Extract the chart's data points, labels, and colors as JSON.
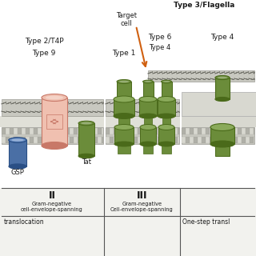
{
  "bg_color": "#f2f2ee",
  "pink_color": "#e8a898",
  "pink_dark": "#c87868",
  "pink_light": "#f0c0b0",
  "blue_color": "#4a6fa5",
  "blue_dark": "#2a4f85",
  "blue_light": "#6a8fc5",
  "green_color": "#6b8c3a",
  "green_dark": "#4a6a1a",
  "green_light": "#8aaa5a",
  "gray_mem": "#c0c0b8",
  "gray_mem_dark": "#909088",
  "gray_mem_light": "#d8d8d0",
  "gray_periplasm": "#d0d0c8",
  "gray_outer_box": "#d0d0c8",
  "text_color": "#1a1a1a",
  "divider_color": "#555555",
  "orange_color": "#d06010",
  "title": "Type 3/Flagella",
  "label_type2": "Type 2/T4P",
  "label_type9": "Type 9",
  "label_type1": "Type 1",
  "label_type4_mid": "Type 4",
  "label_type6": "Type 6",
  "label_type4_right": "Type 4",
  "label_target": "Target\ncell",
  "label_gsp": "GSP",
  "label_tat": "Tat",
  "label_II": "II",
  "label_III": "III",
  "label_gram_II": "Gram-negative\ncell-envelope-spanning",
  "label_gram_III": "Gram-negative\nCell-envelope-spanning",
  "label_bot_left": "translocation",
  "label_bot_right": "One-step transl"
}
